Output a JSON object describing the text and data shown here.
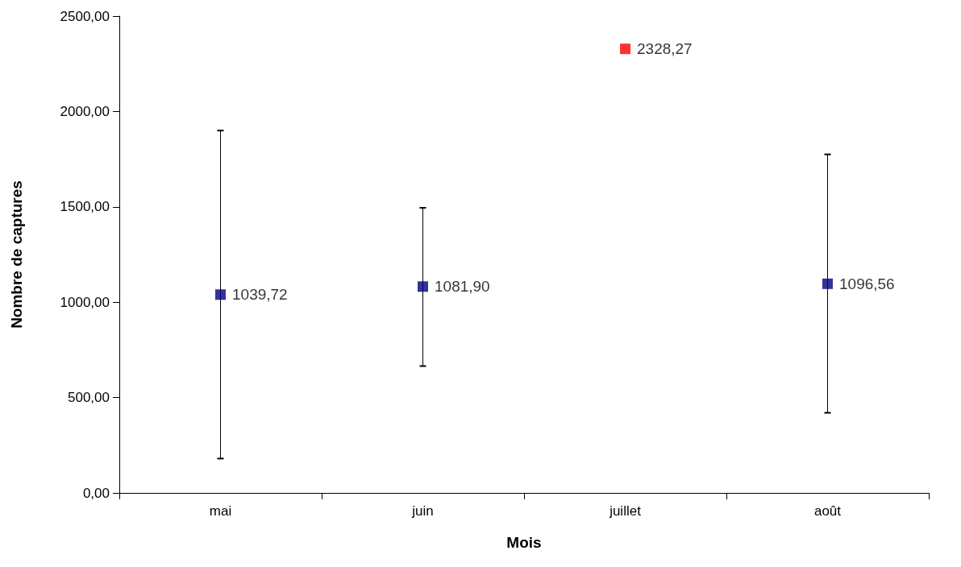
{
  "chart_data": {
    "type": "scatter",
    "xlabel": "Mois",
    "ylabel": "Nombre de captures",
    "categories": [
      "mai",
      "juin",
      "juillet",
      "août"
    ],
    "series": [
      {
        "color": "#000080",
        "values": [
          1039.72,
          1081.9,
          null,
          1096.56
        ],
        "errors": [
          [
            180,
            1900
          ],
          [
            665,
            1495
          ],
          null,
          [
            420,
            1775
          ]
        ],
        "value_labels": [
          "1039,72",
          "1081,90",
          null,
          "1096,56"
        ]
      },
      {
        "color": "#ff0000",
        "values": [
          null,
          null,
          2328.27,
          null
        ],
        "value_labels": [
          null,
          null,
          "2328,27",
          null
        ]
      }
    ],
    "ylim": [
      0,
      2500
    ],
    "yticks": [
      {
        "value": 0,
        "label": "0,00"
      },
      {
        "value": 500,
        "label": "500,00"
      },
      {
        "value": 1000,
        "label": "1000,00"
      },
      {
        "value": 1500,
        "label": "1500,00"
      },
      {
        "value": 2000,
        "label": "2000,00"
      },
      {
        "value": 2500,
        "label": "2500,00"
      }
    ],
    "marker": "square",
    "grid": false
  }
}
